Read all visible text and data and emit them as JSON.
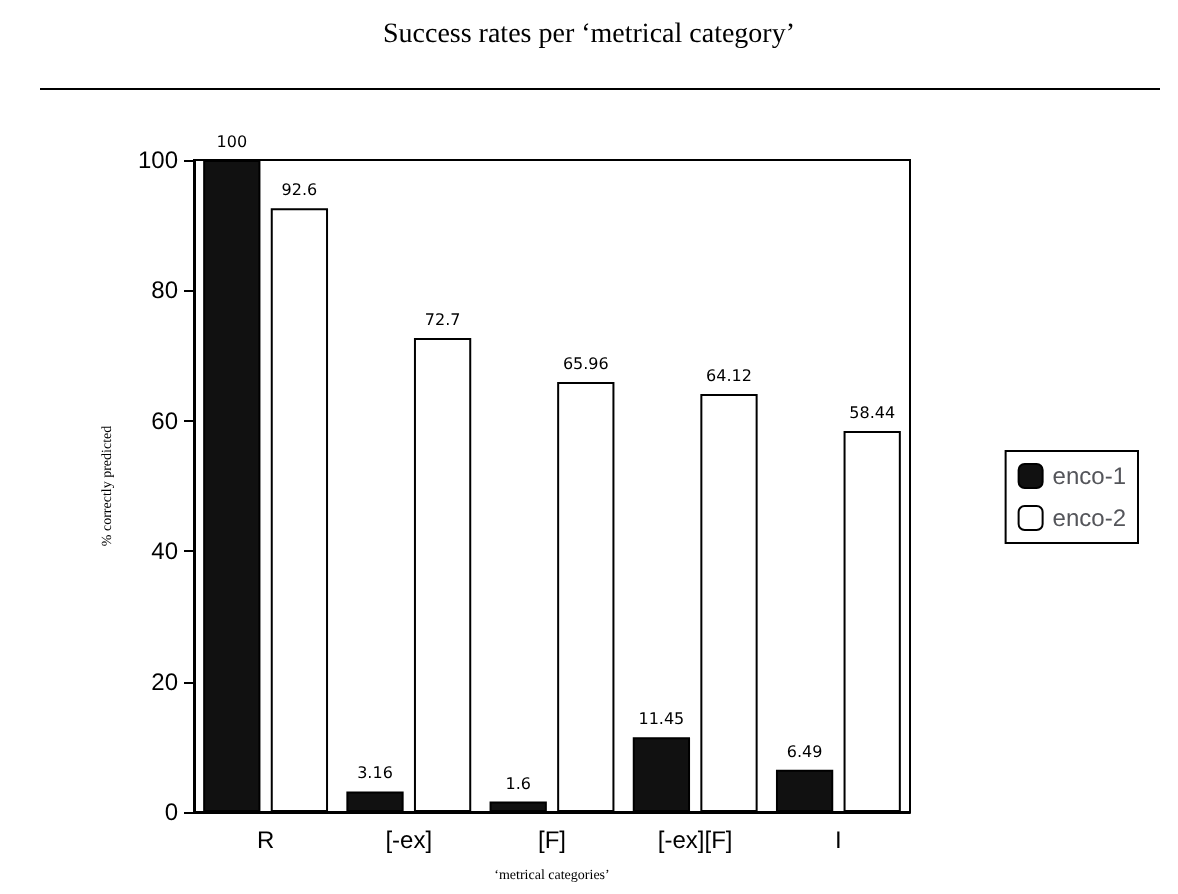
{
  "chart_data": {
    "type": "bar",
    "title": "Success rates per ‘metrical category’",
    "xlabel": "‘metrical categories’",
    "ylabel": "% correctly predicted",
    "categories": [
      "R",
      "[-ex]",
      "[F]",
      "[-ex][F]",
      "I"
    ],
    "series": [
      {
        "name": "enco-1",
        "color": "#111111",
        "values": [
          100,
          3.16,
          1.6,
          11.45,
          6.49
        ]
      },
      {
        "name": "enco-2",
        "color": "#ffffff",
        "values": [
          92.6,
          72.7,
          65.96,
          64.12,
          58.44
        ]
      }
    ],
    "ylim": [
      0,
      100
    ],
    "yticks": [
      0,
      20,
      40,
      60,
      80,
      100
    ],
    "grid": false,
    "legend": "right",
    "data_labels": true
  }
}
